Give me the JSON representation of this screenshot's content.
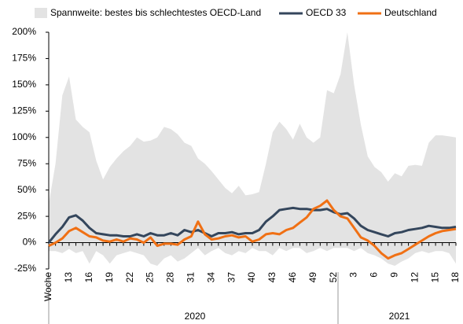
{
  "chart_data": {
    "type": "line",
    "categories": [
      "Woche",
      null,
      null,
      "13",
      null,
      null,
      "16",
      null,
      null,
      "19",
      null,
      null,
      "22",
      null,
      null,
      "25",
      null,
      null,
      "28",
      null,
      null,
      "31",
      null,
      null,
      "34",
      null,
      null,
      "37",
      null,
      null,
      "40",
      null,
      null,
      "43",
      null,
      null,
      "46",
      null,
      null,
      "49",
      null,
      null,
      "52",
      null,
      null,
      "3",
      null,
      null,
      "6",
      null,
      null,
      "9",
      null,
      null,
      "12",
      null,
      null,
      "15",
      null,
      null,
      "18"
    ],
    "year_labels": [
      "2020",
      "2021"
    ],
    "range": {
      "name": "Spannweite: bestes bis schlechtestes OECD-Land",
      "color": "#e3e3e3",
      "high": [
        37,
        75,
        140,
        158,
        117,
        110,
        105,
        78,
        60,
        72,
        80,
        87,
        92,
        100,
        96,
        97,
        100,
        110,
        108,
        103,
        95,
        92,
        80,
        75,
        68,
        60,
        52,
        47,
        54,
        45,
        46,
        48,
        75,
        105,
        115,
        108,
        98,
        113,
        100,
        95,
        100,
        145,
        142,
        160,
        200,
        150,
        112,
        82,
        72,
        67,
        58,
        66,
        63,
        73,
        74,
        73,
        95,
        102,
        102,
        101,
        100
      ],
      "low": [
        -8,
        -8,
        -10,
        -6,
        -10,
        -8,
        -20,
        -8,
        -12,
        -20,
        -12,
        -10,
        -8,
        -10,
        -12,
        -20,
        -22,
        -15,
        -12,
        -18,
        -15,
        -10,
        -5,
        -12,
        -8,
        -5,
        -10,
        -12,
        -8,
        -10,
        -5,
        -8,
        -8,
        -12,
        -5,
        -8,
        -5,
        -5,
        -10,
        -8,
        -5,
        -8,
        -5,
        -5,
        -5,
        -8,
        -5,
        -10,
        -12,
        -15,
        -20,
        -22,
        -18,
        -15,
        -10,
        -8,
        -10,
        -8,
        -8,
        -10,
        -20
      ]
    },
    "series": [
      {
        "name": "OECD 33",
        "color": "#34465c",
        "values": [
          0,
          8,
          15,
          24,
          26,
          21,
          14,
          9,
          8,
          7,
          7,
          6,
          6,
          8,
          6,
          9,
          7,
          7,
          9,
          7,
          12,
          10,
          12,
          9,
          6,
          9,
          9,
          10,
          8,
          9,
          9,
          12,
          20,
          25,
          31,
          32,
          33,
          32,
          32,
          31,
          31,
          32,
          29,
          27,
          28,
          23,
          16,
          12,
          10,
          8,
          6,
          9,
          10,
          12,
          13,
          14,
          16,
          15,
          14,
          14,
          15
        ]
      },
      {
        "name": "Deutschland",
        "color": "#f07014",
        "values": [
          -3,
          0,
          4,
          11,
          14,
          10,
          6,
          5,
          2,
          1,
          3,
          1,
          4,
          3,
          0,
          5,
          -3,
          -1,
          -1,
          -2,
          3,
          6,
          20,
          8,
          3,
          4,
          6,
          7,
          5,
          6,
          1,
          3,
          8,
          9,
          8,
          12,
          14,
          19,
          24,
          32,
          35,
          40,
          31,
          25,
          23,
          14,
          5,
          2,
          -3,
          -10,
          -15,
          -12,
          -10,
          -6,
          -2,
          2,
          6,
          9,
          11,
          12,
          13
        ]
      }
    ],
    "ylim": [
      -25,
      200
    ],
    "yticks": [
      {
        "value": -25,
        "label": "-25%"
      },
      {
        "value": 0,
        "label": "0%"
      },
      {
        "value": 25,
        "label": "25%"
      },
      {
        "value": 50,
        "label": "50%"
      },
      {
        "value": 75,
        "label": "75%"
      },
      {
        "value": 100,
        "label": "100%"
      },
      {
        "value": 125,
        "label": "125%"
      },
      {
        "value": 150,
        "label": "150%"
      },
      {
        "value": 175,
        "label": "175%"
      },
      {
        "value": 200,
        "label": "200%"
      }
    ],
    "grid": false
  }
}
